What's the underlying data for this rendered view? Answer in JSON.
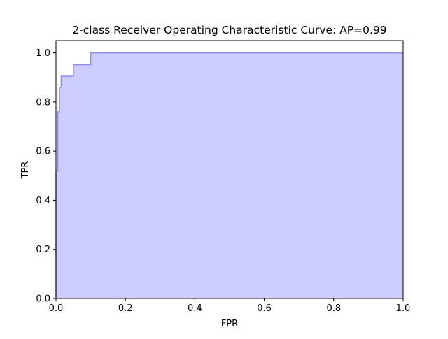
{
  "chart_data": {
    "type": "area",
    "title": "2-class Receiver Operating Characteristic Curve: AP=0.99",
    "xlabel": "FPR",
    "ylabel": "TPR",
    "xlim": [
      0.0,
      1.0
    ],
    "ylim": [
      0.0,
      1.05
    ],
    "grid": false,
    "legend": "none",
    "x_ticks": [
      "0.0",
      "0.2",
      "0.4",
      "0.6",
      "0.8",
      "1.0"
    ],
    "y_ticks": [
      "0.0",
      "0.2",
      "0.4",
      "0.6",
      "0.8",
      "1.0"
    ],
    "series": [
      {
        "step": "post",
        "fill_color": "#ccccff",
        "line_color": "#8c8cf0",
        "points": [
          [
            0.0,
            0.0
          ],
          [
            0.0,
            0.52
          ],
          [
            0.005,
            0.52
          ],
          [
            0.005,
            0.62
          ],
          [
            0.005,
            0.76
          ],
          [
            0.01,
            0.76
          ],
          [
            0.01,
            0.857
          ],
          [
            0.01,
            0.86
          ],
          [
            0.015,
            0.86
          ],
          [
            0.015,
            0.905
          ],
          [
            0.05,
            0.905
          ],
          [
            0.05,
            0.952
          ],
          [
            0.1,
            0.952
          ],
          [
            0.1,
            1.0
          ],
          [
            1.0,
            1.0
          ]
        ]
      }
    ]
  }
}
